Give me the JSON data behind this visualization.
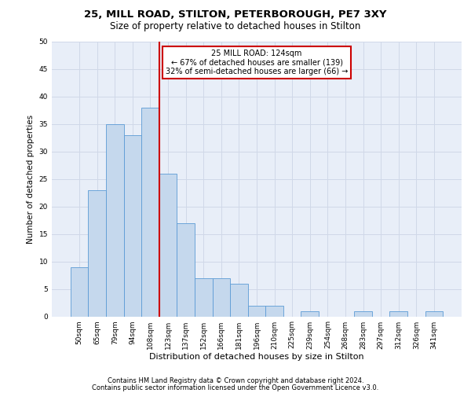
{
  "title1": "25, MILL ROAD, STILTON, PETERBOROUGH, PE7 3XY",
  "title2": "Size of property relative to detached houses in Stilton",
  "xlabel": "Distribution of detached houses by size in Stilton",
  "ylabel": "Number of detached properties",
  "categories": [
    "50sqm",
    "65sqm",
    "79sqm",
    "94sqm",
    "108sqm",
    "123sqm",
    "137sqm",
    "152sqm",
    "166sqm",
    "181sqm",
    "196sqm",
    "210sqm",
    "225sqm",
    "239sqm",
    "254sqm",
    "268sqm",
    "283sqm",
    "297sqm",
    "312sqm",
    "326sqm",
    "341sqm"
  ],
  "values": [
    9,
    23,
    35,
    33,
    38,
    26,
    17,
    7,
    7,
    6,
    2,
    2,
    0,
    1,
    0,
    0,
    1,
    0,
    1,
    0,
    1
  ],
  "bar_color": "#c5d8ed",
  "bar_edge_color": "#5b9bd5",
  "vline_x_index": 5,
  "vline_color": "#cc0000",
  "annotation_text": "25 MILL ROAD: 124sqm\n← 67% of detached houses are smaller (139)\n32% of semi-detached houses are larger (66) →",
  "annotation_box_color": "#ffffff",
  "annotation_box_edge_color": "#cc0000",
  "ylim": [
    0,
    50
  ],
  "yticks": [
    0,
    5,
    10,
    15,
    20,
    25,
    30,
    35,
    40,
    45,
    50
  ],
  "grid_color": "#d0d8e8",
  "bg_color": "#e8eef8",
  "footer1": "Contains HM Land Registry data © Crown copyright and database right 2024.",
  "footer2": "Contains public sector information licensed under the Open Government Licence v3.0.",
  "title1_fontsize": 9.5,
  "title2_fontsize": 8.5,
  "xlabel_fontsize": 8,
  "ylabel_fontsize": 7.5,
  "tick_fontsize": 6.5,
  "annotation_fontsize": 7,
  "footer_fontsize": 6
}
